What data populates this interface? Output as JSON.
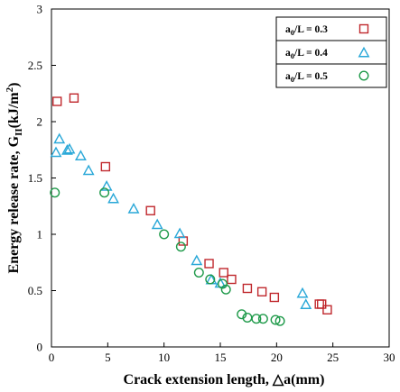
{
  "chart_data": {
    "type": "scatter",
    "xlabel": "Crack extension length, △a(mm)",
    "ylabel": {
      "prefix": "Energy release rate, G",
      "sub": "II",
      "unit_pre": "(kJ/m",
      "sup": "2",
      "unit_post": ")"
    },
    "xlim": [
      0,
      30
    ],
    "ylim": [
      0,
      3
    ],
    "x_ticks": [
      "0",
      "5",
      "10",
      "15",
      "20",
      "25",
      "30"
    ],
    "y_ticks": [
      "0",
      "0.5",
      "1",
      "1.5",
      "2",
      "2.5",
      "3"
    ],
    "grid": false,
    "legend_position": "top-right",
    "series": [
      {
        "name": "a0/L = 0.3",
        "label_main": "a",
        "label_sub": "0",
        "label_rest": "/L = 0.3",
        "marker": "square",
        "color": "#c0282d",
        "points": [
          [
            0.5,
            2.18
          ],
          [
            2.0,
            2.21
          ],
          [
            4.8,
            1.6
          ],
          [
            8.8,
            1.21
          ],
          [
            11.7,
            0.94
          ],
          [
            14.0,
            0.74
          ],
          [
            15.3,
            0.66
          ],
          [
            16.0,
            0.6
          ],
          [
            17.4,
            0.52
          ],
          [
            18.7,
            0.49
          ],
          [
            19.8,
            0.44
          ],
          [
            23.8,
            0.38
          ],
          [
            24.0,
            0.38
          ],
          [
            24.5,
            0.33
          ]
        ]
      },
      {
        "name": "a0/L = 0.4",
        "label_main": "a",
        "label_sub": "0",
        "label_rest": "/L = 0.4",
        "marker": "triangle",
        "color": "#2aa8d8",
        "points": [
          [
            0.4,
            1.73
          ],
          [
            0.7,
            1.85
          ],
          [
            1.4,
            1.75
          ],
          [
            1.6,
            1.76
          ],
          [
            2.6,
            1.7
          ],
          [
            3.3,
            1.57
          ],
          [
            4.9,
            1.43
          ],
          [
            5.5,
            1.32
          ],
          [
            7.3,
            1.23
          ],
          [
            9.4,
            1.09
          ],
          [
            11.4,
            1.01
          ],
          [
            12.9,
            0.77
          ],
          [
            14.2,
            0.6
          ],
          [
            15.0,
            0.57
          ],
          [
            22.3,
            0.48
          ],
          [
            22.6,
            0.38
          ]
        ]
      },
      {
        "name": "a0/L = 0.5",
        "label_main": "a",
        "label_sub": "0",
        "label_rest": "/L = 0.5",
        "marker": "circle",
        "color": "#1f9a4a",
        "points": [
          [
            0.3,
            1.37
          ],
          [
            4.7,
            1.37
          ],
          [
            10.0,
            1.0
          ],
          [
            11.5,
            0.89
          ],
          [
            13.1,
            0.66
          ],
          [
            14.1,
            0.6
          ],
          [
            15.2,
            0.56
          ],
          [
            15.5,
            0.51
          ],
          [
            16.9,
            0.29
          ],
          [
            17.4,
            0.26
          ],
          [
            18.2,
            0.25
          ],
          [
            18.8,
            0.25
          ],
          [
            19.9,
            0.24
          ],
          [
            20.3,
            0.23
          ]
        ]
      }
    ]
  }
}
